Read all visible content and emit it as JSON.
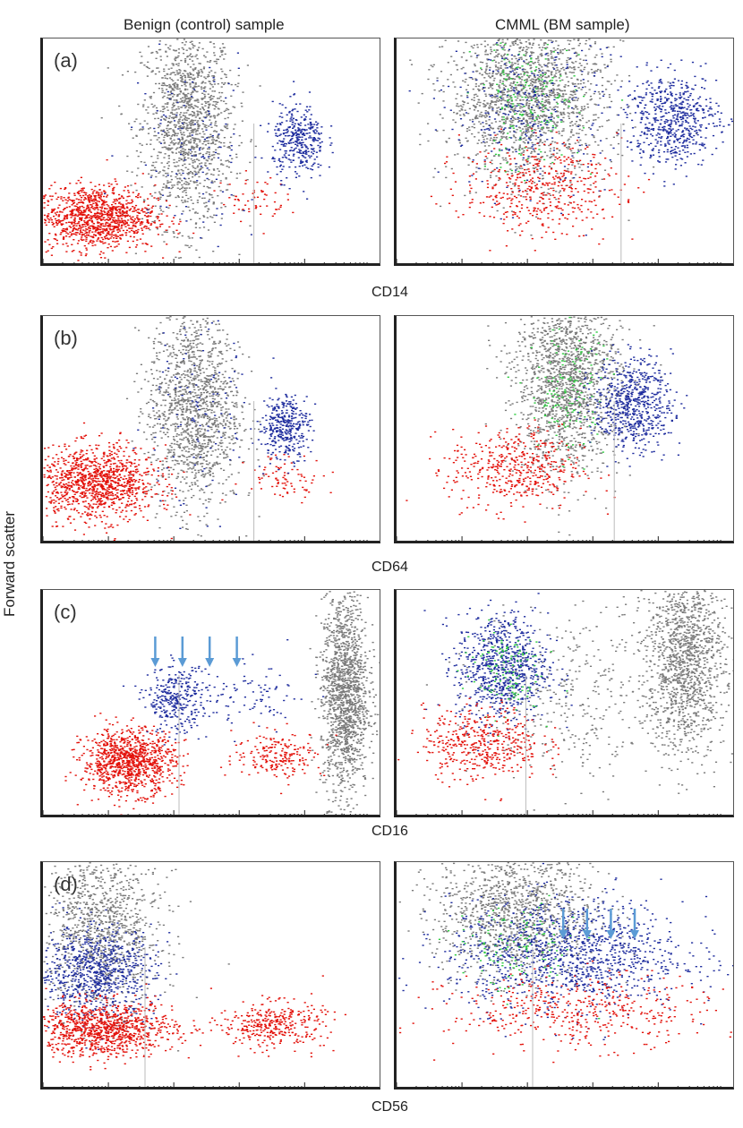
{
  "figure": {
    "column_titles": [
      "Benign (control) sample",
      "CMML (BM sample)"
    ],
    "y_axis_label": "Forward scatter",
    "colors": {
      "neutrophil": "#e3120b",
      "monocyte": "#1f2d9e",
      "gray": "#7a7a7a",
      "green": "#2ecc40",
      "arrow": "#5b9bd5"
    }
  },
  "chart_data": [
    {
      "type": "scatter",
      "panel_label": "(a)",
      "xlabel": "CD14",
      "sample": "Benign (control) sample",
      "x_scale": "log",
      "y_quantity": "Forward scatter",
      "grid": false,
      "series": [
        {
          "color": "#7a7a7a",
          "clusters": [
            {
              "x_log": 2.2,
              "y": 0.62,
              "sx": 0.35,
              "sy": 0.22,
              "n": 1400
            }
          ]
        },
        {
          "color": "#e3120b",
          "clusters": [
            {
              "x_log": 0.8,
              "y": 0.22,
              "sx": 0.45,
              "sy": 0.07,
              "n": 1100
            },
            {
              "x_log": 3.2,
              "y": 0.3,
              "sx": 0.25,
              "sy": 0.05,
              "n": 60
            }
          ]
        },
        {
          "color": "#1f2d9e",
          "clusters": [
            {
              "x_log": 3.9,
              "y": 0.55,
              "sx": 0.2,
              "sy": 0.08,
              "n": 350
            },
            {
              "x_log": 2.3,
              "y": 0.55,
              "sx": 0.5,
              "sy": 0.2,
              "n": 120
            }
          ]
        }
      ]
    },
    {
      "type": "scatter",
      "xlabel": "CD14",
      "sample": "CMML (BM sample)",
      "x_scale": "log",
      "y_quantity": "Forward scatter",
      "grid": false,
      "series": [
        {
          "color": "#7a7a7a",
          "clusters": [
            {
              "x_log": 2.0,
              "y": 0.75,
              "sx": 0.6,
              "sy": 0.18,
              "n": 1800
            }
          ]
        },
        {
          "color": "#2ecc40",
          "clusters": [
            {
              "x_log": 2.0,
              "y": 0.72,
              "sx": 0.4,
              "sy": 0.15,
              "n": 180
            }
          ]
        },
        {
          "color": "#1f2d9e",
          "clusters": [
            {
              "x_log": 4.2,
              "y": 0.65,
              "sx": 0.35,
              "sy": 0.1,
              "n": 600
            },
            {
              "x_log": 2.0,
              "y": 0.7,
              "sx": 0.6,
              "sy": 0.2,
              "n": 300
            }
          ]
        },
        {
          "color": "#e3120b",
          "clusters": [
            {
              "x_log": 2.2,
              "y": 0.35,
              "sx": 0.6,
              "sy": 0.1,
              "n": 450
            }
          ]
        }
      ]
    },
    {
      "type": "scatter",
      "panel_label": "(b)",
      "xlabel": "CD64",
      "sample": "Benign (control) sample",
      "x_scale": "log",
      "y_quantity": "Forward scatter",
      "grid": false,
      "series": [
        {
          "color": "#7a7a7a",
          "clusters": [
            {
              "x_log": 2.3,
              "y": 0.6,
              "sx": 0.35,
              "sy": 0.22,
              "n": 1400
            }
          ]
        },
        {
          "color": "#e3120b",
          "clusters": [
            {
              "x_log": 0.8,
              "y": 0.27,
              "sx": 0.45,
              "sy": 0.08,
              "n": 1100
            },
            {
              "x_log": 3.7,
              "y": 0.3,
              "sx": 0.3,
              "sy": 0.05,
              "n": 80
            }
          ]
        },
        {
          "color": "#1f2d9e",
          "clusters": [
            {
              "x_log": 3.7,
              "y": 0.52,
              "sx": 0.18,
              "sy": 0.07,
              "n": 350
            },
            {
              "x_log": 2.3,
              "y": 0.55,
              "sx": 0.5,
              "sy": 0.2,
              "n": 120
            }
          ]
        }
      ]
    },
    {
      "type": "scatter",
      "xlabel": "CD64",
      "sample": "CMML (BM sample)",
      "x_scale": "log",
      "y_quantity": "Forward scatter",
      "grid": false,
      "series": [
        {
          "color": "#7a7a7a",
          "clusters": [
            {
              "x_log": 2.6,
              "y": 0.72,
              "sx": 0.4,
              "sy": 0.2,
              "n": 1600
            }
          ]
        },
        {
          "color": "#2ecc40",
          "clusters": [
            {
              "x_log": 2.6,
              "y": 0.68,
              "sx": 0.3,
              "sy": 0.15,
              "n": 150
            }
          ]
        },
        {
          "color": "#1f2d9e",
          "clusters": [
            {
              "x_log": 3.6,
              "y": 0.62,
              "sx": 0.3,
              "sy": 0.1,
              "n": 650
            }
          ]
        },
        {
          "color": "#e3120b",
          "clusters": [
            {
              "x_log": 1.8,
              "y": 0.33,
              "sx": 0.5,
              "sy": 0.09,
              "n": 450
            }
          ]
        }
      ]
    },
    {
      "type": "scatter",
      "panel_label": "(c)",
      "xlabel": "CD16",
      "sample": "Benign (control) sample",
      "x_scale": "log",
      "y_quantity": "Forward scatter",
      "grid": false,
      "series": [
        {
          "color": "#7a7a7a",
          "clusters": [
            {
              "x_log": 4.6,
              "y": 0.55,
              "sx": 0.18,
              "sy": 0.22,
              "n": 1500
            }
          ]
        },
        {
          "color": "#e3120b",
          "clusters": [
            {
              "x_log": 1.3,
              "y": 0.25,
              "sx": 0.35,
              "sy": 0.07,
              "n": 1000
            },
            {
              "x_log": 3.6,
              "y": 0.28,
              "sx": 0.35,
              "sy": 0.05,
              "n": 200
            }
          ]
        },
        {
          "color": "#1f2d9e",
          "clusters": [
            {
              "x_log": 2.0,
              "y": 0.52,
              "sx": 0.2,
              "sy": 0.07,
              "n": 300
            },
            {
              "x_log": 3.0,
              "y": 0.52,
              "sx": 0.6,
              "sy": 0.08,
              "n": 120
            }
          ]
        }
      ]
    },
    {
      "type": "scatter",
      "xlabel": "CD16",
      "sample": "CMML (BM sample)",
      "x_scale": "log",
      "y_quantity": "Forward scatter",
      "grid": false,
      "series": [
        {
          "color": "#7a7a7a",
          "clusters": [
            {
              "x_log": 4.4,
              "y": 0.7,
              "sx": 0.3,
              "sy": 0.2,
              "n": 1300
            },
            {
              "x_log": 2.8,
              "y": 0.55,
              "sx": 0.8,
              "sy": 0.2,
              "n": 400
            }
          ]
        },
        {
          "color": "#1f2d9e",
          "clusters": [
            {
              "x_log": 1.6,
              "y": 0.66,
              "sx": 0.35,
              "sy": 0.12,
              "n": 800
            }
          ]
        },
        {
          "color": "#2ecc40",
          "clusters": [
            {
              "x_log": 1.6,
              "y": 0.66,
              "sx": 0.3,
              "sy": 0.1,
              "n": 120
            }
          ]
        },
        {
          "color": "#e3120b",
          "clusters": [
            {
              "x_log": 1.3,
              "y": 0.33,
              "sx": 0.45,
              "sy": 0.08,
              "n": 450
            }
          ]
        }
      ]
    },
    {
      "type": "scatter",
      "panel_label": "(d)",
      "xlabel": "CD56",
      "sample": "Benign (control) sample",
      "x_scale": "log",
      "y_quantity": "Forward scatter",
      "grid": false,
      "series": [
        {
          "color": "#7a7a7a",
          "clusters": [
            {
              "x_log": 0.9,
              "y": 0.72,
              "sx": 0.45,
              "sy": 0.18,
              "n": 1100
            }
          ]
        },
        {
          "color": "#1f2d9e",
          "clusters": [
            {
              "x_log": 0.8,
              "y": 0.52,
              "sx": 0.45,
              "sy": 0.1,
              "n": 800
            }
          ]
        },
        {
          "color": "#e3120b",
          "clusters": [
            {
              "x_log": 0.9,
              "y": 0.27,
              "sx": 0.55,
              "sy": 0.06,
              "n": 1000
            },
            {
              "x_log": 3.5,
              "y": 0.29,
              "sx": 0.4,
              "sy": 0.05,
              "n": 350
            }
          ]
        }
      ]
    },
    {
      "type": "scatter",
      "xlabel": "CD56",
      "sample": "CMML (BM sample)",
      "x_scale": "log",
      "y_quantity": "Forward scatter",
      "grid": false,
      "series": [
        {
          "color": "#7a7a7a",
          "clusters": [
            {
              "x_log": 1.8,
              "y": 0.8,
              "sx": 0.6,
              "sy": 0.15,
              "n": 1200
            }
          ]
        },
        {
          "color": "#1f2d9e",
          "clusters": [
            {
              "x_log": 2.6,
              "y": 0.6,
              "sx": 0.9,
              "sy": 0.12,
              "n": 1200
            }
          ]
        },
        {
          "color": "#2ecc40",
          "clusters": [
            {
              "x_log": 1.8,
              "y": 0.62,
              "sx": 0.5,
              "sy": 0.1,
              "n": 120
            }
          ]
        },
        {
          "color": "#e3120b",
          "clusters": [
            {
              "x_log": 2.8,
              "y": 0.35,
              "sx": 1.0,
              "sy": 0.08,
              "n": 450
            }
          ]
        }
      ]
    }
  ]
}
